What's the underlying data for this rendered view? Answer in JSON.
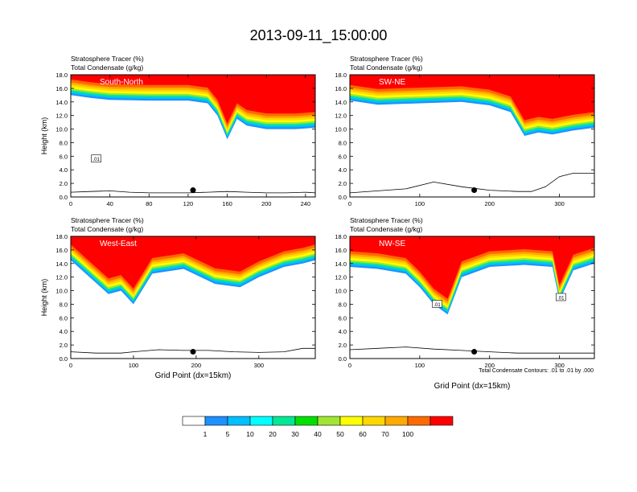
{
  "title": "2013-09-11_15:00:00",
  "footnote": "Total Condensate Contours: .01 to .01 by .000",
  "colorbar": {
    "labels": [
      "1",
      "5",
      "10",
      "20",
      "30",
      "40",
      "50",
      "60",
      "70",
      "100"
    ],
    "colors": [
      "#ffffff",
      "#1e90ff",
      "#00bfff",
      "#00ffff",
      "#00e896",
      "#00e000",
      "#a0e632",
      "#ffff00",
      "#ffd700",
      "#ffaa00",
      "#ff6a00",
      "#ff0000"
    ]
  },
  "chart_data": [
    {
      "type": "heatmap",
      "panel_label": "South-North",
      "subtitle_1": "Stratosphere Tracer   (%)",
      "subtitle_2": "Total Condensate   (g/kg)",
      "ylabel": "Height (km)",
      "xlabel": "",
      "xlim": [
        0,
        250
      ],
      "ylim": [
        0,
        18
      ],
      "xticks": [
        "0",
        "40",
        "80",
        "120",
        "160",
        "200",
        "240"
      ],
      "yticks": [
        "0.0",
        "2.0",
        "4.0",
        "6.0",
        "8.0",
        "10.0",
        "12.0",
        "14.0",
        "16.0",
        "18.0"
      ],
      "contour_label": ".01",
      "tracer_boundary": {
        "x": [
          0,
          20,
          40,
          80,
          120,
          140,
          150,
          160,
          170,
          180,
          200,
          230,
          250
        ],
        "y": [
          15.0,
          14.6,
          14.3,
          14.2,
          14.2,
          13.8,
          12.0,
          8.5,
          11.5,
          10.5,
          10.0,
          10.0,
          10.2
        ]
      },
      "terrain": {
        "x": [
          0,
          20,
          40,
          60,
          80,
          100,
          120,
          140,
          160,
          180,
          200,
          220,
          240,
          250
        ],
        "y": [
          0.7,
          0.8,
          0.9,
          0.7,
          0.6,
          0.6,
          0.6,
          0.7,
          0.8,
          0.7,
          0.6,
          0.6,
          0.7,
          0.6
        ]
      },
      "marker": {
        "x": 125,
        "y": 1.0
      }
    },
    {
      "type": "heatmap",
      "panel_label": "SW-NE",
      "subtitle_1": "Stratosphere Tracer   (%)",
      "subtitle_2": "Total Condensate   (g/kg)",
      "ylabel": "",
      "xlabel": "",
      "xlim": [
        0,
        350
      ],
      "ylim": [
        0,
        18
      ],
      "xticks": [
        "0",
        "100",
        "200",
        "300"
      ],
      "yticks": [
        "0.0",
        "2.0",
        "4.0",
        "6.0",
        "8.0",
        "10.0",
        "12.0",
        "14.0",
        "16.0",
        "18.0"
      ],
      "tracer_boundary": {
        "x": [
          0,
          40,
          100,
          160,
          200,
          230,
          250,
          270,
          290,
          320,
          350
        ],
        "y": [
          14.2,
          13.6,
          13.8,
          14.0,
          13.5,
          12.5,
          9.0,
          9.5,
          9.2,
          9.8,
          10.2
        ]
      },
      "terrain": {
        "x": [
          0,
          40,
          80,
          120,
          160,
          200,
          240,
          260,
          280,
          300,
          320,
          350
        ],
        "y": [
          0.6,
          0.9,
          1.2,
          2.2,
          1.5,
          1.0,
          0.8,
          0.8,
          1.5,
          3.0,
          3.5,
          3.5
        ]
      },
      "marker": {
        "x": 178,
        "y": 1.0
      }
    },
    {
      "type": "heatmap",
      "panel_label": "West-East",
      "subtitle_1": "Stratosphere Tracer   (%)",
      "subtitle_2": "Total Condensate   (g/kg)",
      "ylabel": "Height (km)",
      "xlabel": "Grid Point (dx=15km)",
      "xlim": [
        0,
        390
      ],
      "ylim": [
        0,
        18
      ],
      "xticks": [
        "0",
        "100",
        "200",
        "300"
      ],
      "yticks": [
        "0.0",
        "2.0",
        "4.0",
        "6.0",
        "8.0",
        "10.0",
        "12.0",
        "14.0",
        "16.0",
        "18.0"
      ],
      "tracer_boundary": {
        "x": [
          0,
          30,
          60,
          80,
          100,
          130,
          180,
          230,
          270,
          300,
          340,
          370,
          390
        ],
        "y": [
          14.5,
          12.0,
          9.5,
          10.0,
          8.0,
          12.5,
          13.2,
          11.0,
          10.5,
          12.0,
          13.5,
          14.0,
          14.5
        ]
      },
      "terrain": {
        "x": [
          0,
          40,
          80,
          100,
          140,
          180,
          220,
          260,
          300,
          340,
          370,
          390
        ],
        "y": [
          1.0,
          0.8,
          0.8,
          1.0,
          1.3,
          1.2,
          1.2,
          1.0,
          0.9,
          1.0,
          1.5,
          1.5
        ]
      },
      "marker": {
        "x": 195,
        "y": 1.0
      }
    },
    {
      "type": "heatmap",
      "panel_label": "NW-SE",
      "subtitle_1": "Stratosphere Tracer   (%)",
      "subtitle_2": "Total Condensate   (g/kg)",
      "ylabel": "",
      "xlabel": "Grid Point (dx=15km)",
      "xlim": [
        0,
        350
      ],
      "ylim": [
        0,
        18
      ],
      "xticks": [
        "0",
        "100",
        "200",
        "300"
      ],
      "yticks": [
        "0.0",
        "2.0",
        "4.0",
        "6.0",
        "8.0",
        "10.0",
        "12.0",
        "14.0",
        "16.0",
        "18.0"
      ],
      "contour_label": ".01",
      "contour_label_2": ".01",
      "tracer_boundary": {
        "x": [
          0,
          40,
          80,
          100,
          120,
          140,
          160,
          200,
          250,
          290,
          300,
          320,
          350
        ],
        "y": [
          13.5,
          13.2,
          12.5,
          10.5,
          8.0,
          6.5,
          12.0,
          13.5,
          13.8,
          13.5,
          8.5,
          13.0,
          14.0
        ]
      },
      "terrain": {
        "x": [
          0,
          40,
          80,
          120,
          160,
          200,
          240,
          280,
          300,
          320,
          350
        ],
        "y": [
          1.3,
          1.5,
          1.7,
          1.4,
          1.2,
          1.0,
          0.8,
          0.8,
          0.8,
          0.8,
          0.8
        ]
      },
      "marker": {
        "x": 178,
        "y": 1.0
      }
    }
  ]
}
